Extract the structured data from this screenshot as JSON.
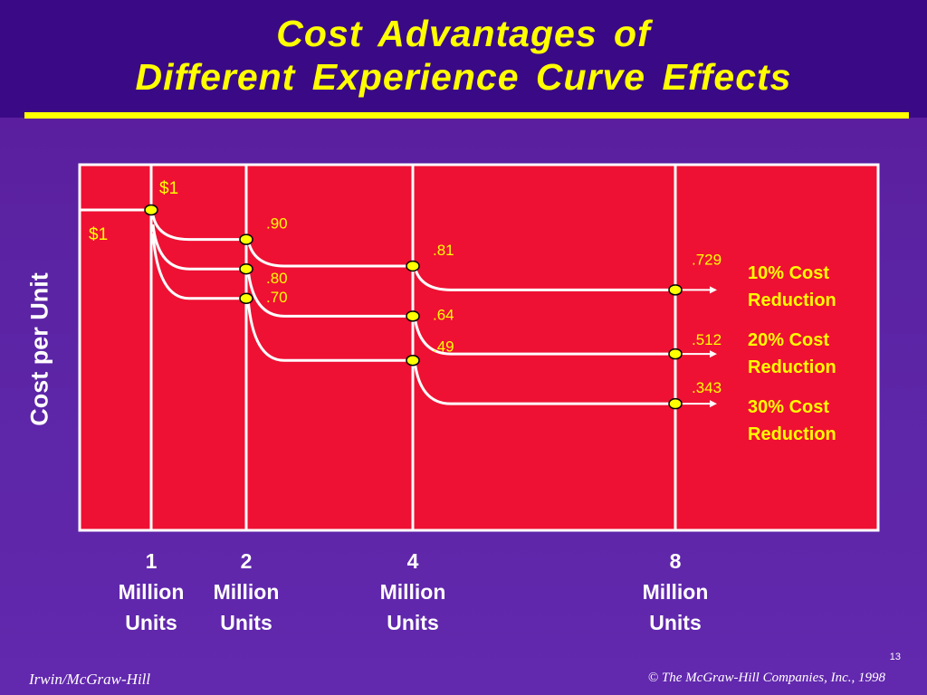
{
  "slide": {
    "title_line1": "Cost  Advantages  of",
    "title_line2": "Different  Experience  Curve  Effects",
    "footer_left": "Irwin/McGraw-Hill",
    "footer_right": "© The McGraw-Hill Companies, Inc., 1998",
    "page_number": "13"
  },
  "colors": {
    "background": "#5b24a4",
    "title_band": "#3a0a86",
    "title_text": "#ffff00",
    "plot_area": "#ee1133",
    "curve": "#ffffff",
    "marker": "#ffff00",
    "label_text": "#ffff00"
  },
  "chart_data": {
    "type": "line",
    "ylabel": "Cost per Unit",
    "x_categories": [
      {
        "value": 1,
        "line1": "1",
        "line2": "Million",
        "line3": "Units"
      },
      {
        "value": 2,
        "line1": "2",
        "line2": "Million",
        "line3": "Units"
      },
      {
        "value": 4,
        "line1": "4",
        "line2": "Million",
        "line3": "Units"
      },
      {
        "value": 8,
        "line1": "8",
        "line2": "Million",
        "line3": "Units"
      }
    ],
    "start_labels": {
      "top": "$1",
      "left": "$1"
    },
    "series": [
      {
        "name": "10% Cost Reduction",
        "name_line1": "10% Cost",
        "name_line2": "Reduction",
        "values": [
          1,
          0.9,
          0.81,
          0.729
        ],
        "labels": [
          "",
          ".90",
          ".81",
          ".729"
        ]
      },
      {
        "name": "20% Cost Reduction",
        "name_line1": "20% Cost",
        "name_line2": "Reduction",
        "values": [
          1,
          0.8,
          0.64,
          0.512
        ],
        "labels": [
          "",
          ".80",
          ".64",
          ".512"
        ]
      },
      {
        "name": "30% Cost Reduction",
        "name_line1": "30% Cost",
        "name_line2": "Reduction",
        "values": [
          1,
          0.7,
          0.49,
          0.343
        ],
        "labels": [
          "",
          ".70",
          ".49",
          ".343"
        ]
      }
    ],
    "legend_position": "right",
    "grid": false
  }
}
